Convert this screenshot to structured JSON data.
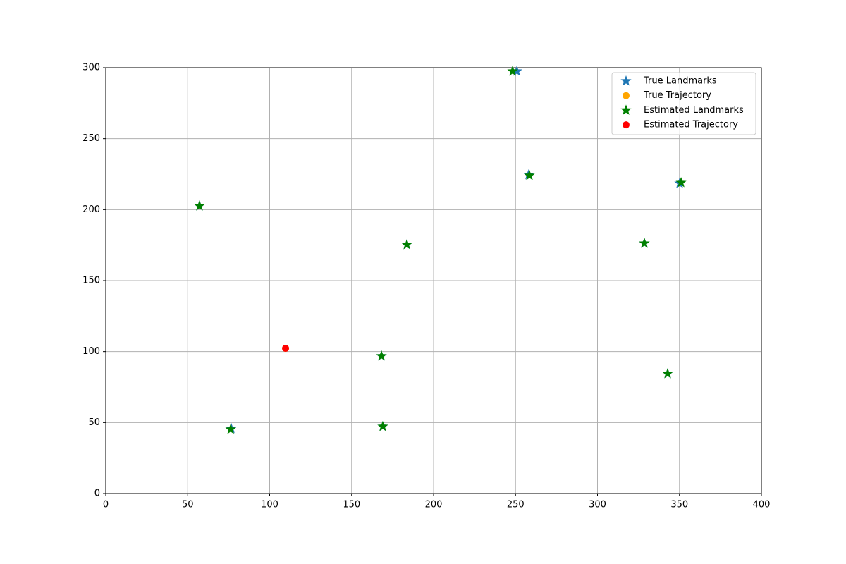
{
  "chart_data": {
    "type": "scatter",
    "xlim": [
      0,
      400
    ],
    "ylim": [
      0,
      300
    ],
    "xticks": [
      0,
      50,
      100,
      150,
      200,
      250,
      300,
      350,
      400
    ],
    "yticks": [
      0,
      50,
      100,
      150,
      200,
      250,
      300
    ],
    "grid": true,
    "legend": "upper right",
    "series": [
      {
        "name": "True Landmarks",
        "color": "#1f77b4",
        "marker": "star",
        "x": [
          250.8,
          258,
          350.1,
          57.2,
          183.7,
          328.6,
          168.2,
          342.8,
          76.6,
          169
        ],
        "values": [
          297.5,
          224.5,
          218.5,
          202.6,
          175.3,
          176.3,
          96.9,
          84.4,
          45.7,
          47.2
        ]
      },
      {
        "name": "True Trajectory",
        "color": "orange",
        "marker": "circle",
        "x": [
          109.7
        ],
        "values": [
          102.3
        ]
      },
      {
        "name": "Estimated Landmarks",
        "color": "green",
        "marker": "star",
        "x": [
          248.2,
          258.5,
          351,
          57.2,
          183.7,
          328.6,
          168.2,
          342.8,
          76.2,
          169
        ],
        "values": [
          297.5,
          224,
          219,
          202.6,
          175.3,
          176.3,
          96.9,
          84.4,
          45.2,
          47.2
        ]
      },
      {
        "name": "Estimated Trajectory",
        "color": "red",
        "marker": "circle",
        "x": [
          109.7
        ],
        "values": [
          102.3
        ]
      }
    ]
  }
}
